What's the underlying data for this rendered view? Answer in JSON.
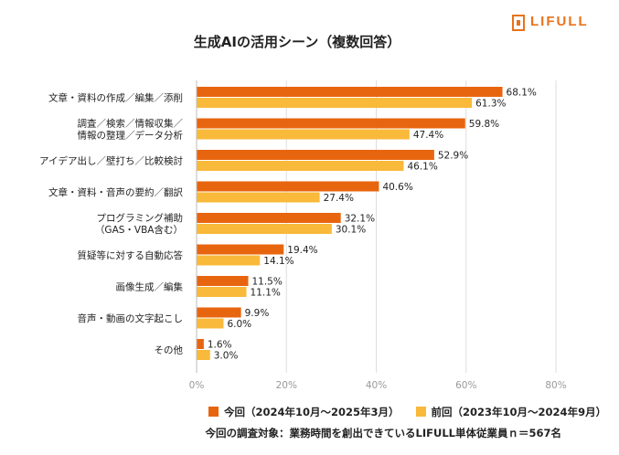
{
  "brand": {
    "name": "LIFULL",
    "color": "#e8731b"
  },
  "chart_data": {
    "type": "bar",
    "orientation": "horizontal",
    "title": "生成AIの活用シーン（複数回答）",
    "categories": [
      [
        "文章・資料の作成／編集／添削"
      ],
      [
        "調査／検索／情報収集／",
        "情報の整理／データ分析"
      ],
      [
        "アイデア出し／壁打ち／比較検討"
      ],
      [
        "文章・資料・音声の要約／翻訳"
      ],
      [
        "プログラミング補助",
        "（GAS・VBA含む）"
      ],
      [
        "質疑等に対する自動応答"
      ],
      [
        "画像生成／編集"
      ],
      [
        "音声・動画の文字起こし"
      ],
      [
        "その他"
      ]
    ],
    "series": [
      {
        "name": "今回（2024年10月～2025年3月）",
        "color": "#e8650f",
        "values": [
          68.1,
          59.8,
          52.9,
          40.6,
          32.1,
          19.4,
          11.5,
          9.9,
          1.6
        ]
      },
      {
        "name": "前回（2023年10月～2024年9月）",
        "color": "#f9b93a",
        "values": [
          61.3,
          47.4,
          46.1,
          27.4,
          30.1,
          14.1,
          11.1,
          6.0,
          3.0
        ]
      }
    ],
    "value_suffix": "%",
    "xlim": [
      0,
      80
    ],
    "xticks": [
      0,
      20,
      40,
      60,
      80
    ],
    "xtick_labels": [
      "0%",
      "20%",
      "40%",
      "60%",
      "80%"
    ],
    "grid": true,
    "legend_position": "bottom"
  },
  "footnote": "今回の調査対象：業務時間を創出できているLIFULL単体従業員ｎ＝567名"
}
